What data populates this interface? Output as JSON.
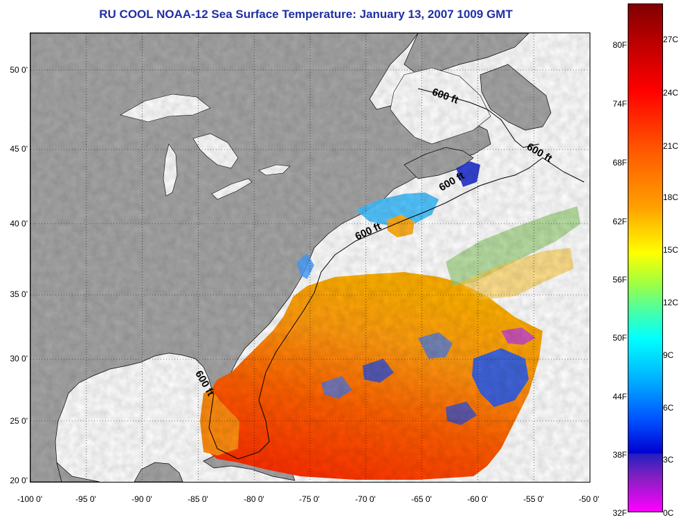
{
  "title": "RU COOL  NOAA-12  Sea Surface Temperature:  January 13, 2007 1009 GMT",
  "map": {
    "lon_range": [
      -100,
      -50
    ],
    "lat_range": [
      20,
      52.5
    ],
    "latitude_ticks": [
      "50 0'",
      "45 0'",
      "40 0'",
      "35 0'",
      "30 0'",
      "25 0'",
      "20 0'"
    ],
    "longitude_ticks": [
      "-100 0'",
      "-95 0'",
      "-90 0'",
      "-85 0'",
      "-80 0'",
      "-75 0'",
      "-70 0'",
      "-65 0'",
      "-60 0'",
      "-55 0'",
      "-50 0'"
    ],
    "contour_labels": [
      "600 ft",
      "600 ft",
      "600 ft",
      "600 ft",
      "600 ft"
    ],
    "land_color": "#a6a6a6",
    "no_data_color": "#ffffff",
    "grid": "dotted"
  },
  "colorbar": {
    "fahrenheit_labels": [
      "80F",
      "74F",
      "68F",
      "62F",
      "56F",
      "50F",
      "44F",
      "38F",
      "32F"
    ],
    "celsius_labels": [
      "27C",
      "24C",
      "21C",
      "18C",
      "15C",
      "12C",
      "9C",
      "6C",
      "3C",
      "0C"
    ],
    "range_c": [
      0,
      28.5
    ]
  }
}
